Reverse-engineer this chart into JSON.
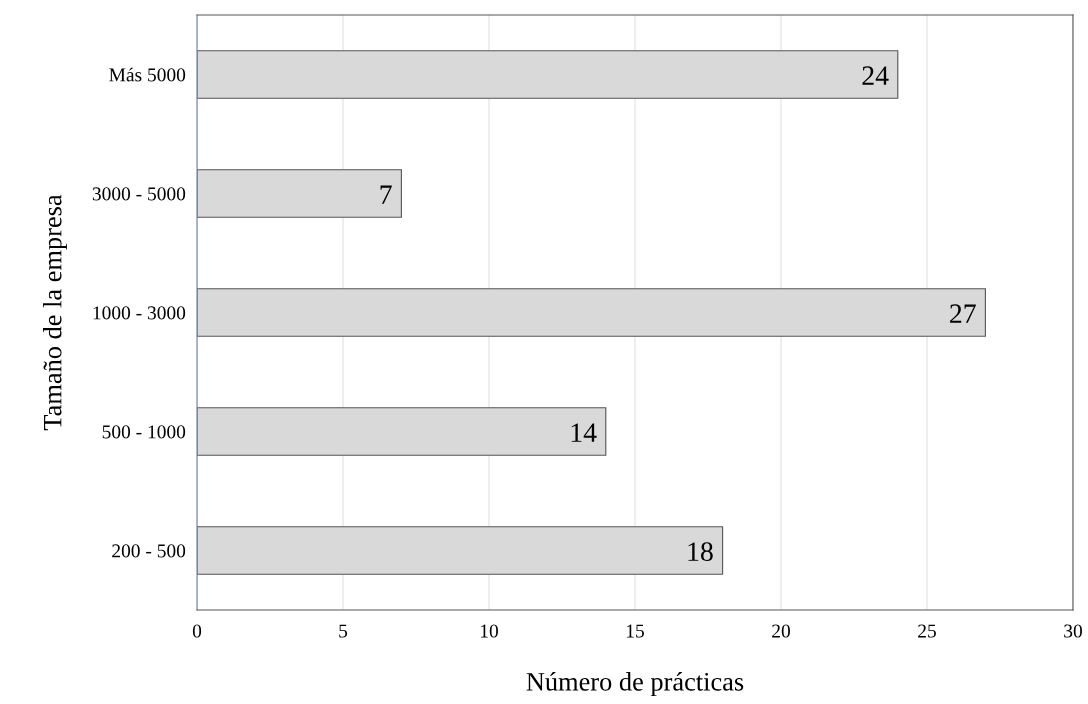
{
  "chart_data": {
    "type": "bar",
    "orientation": "horizontal",
    "xlabel": "Número de prácticas",
    "ylabel": "Tamaño de la empresa",
    "categories": [
      "Más 5000",
      "3000 - 5000",
      "1000 - 3000",
      "500 - 1000",
      "200 - 500"
    ],
    "values": [
      24,
      7,
      27,
      14,
      18
    ],
    "color": "#d9d9d9",
    "xlim": [
      0,
      30
    ],
    "xticks": [
      0,
      5,
      10,
      15,
      20,
      25,
      30
    ],
    "grid": "x",
    "data_labels": true
  }
}
